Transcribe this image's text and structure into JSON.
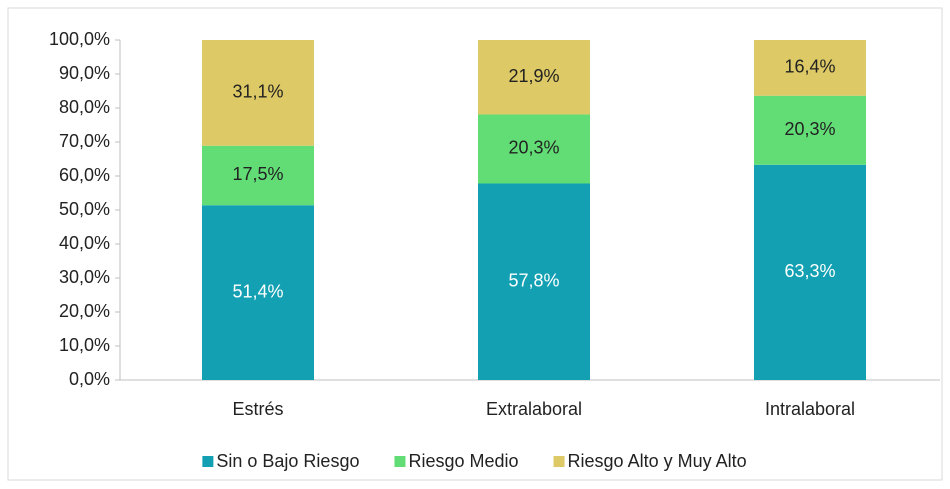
{
  "chart_data": {
    "type": "stacked_bar",
    "categories": [
      "Estrés",
      "Extralaboral",
      "Intralaboral"
    ],
    "series": [
      {
        "name": "Sin o Bajo Riesgo",
        "color": "#13a0b3",
        "values": [
          51.4,
          57.8,
          63.3
        ],
        "value_labels": [
          "51,4%",
          "57,8%",
          "63,3%"
        ]
      },
      {
        "name": "Riesgo Medio",
        "color": "#62dd76",
        "values": [
          17.5,
          20.3,
          20.3
        ],
        "value_labels": [
          "17,5%",
          "20,3%",
          "20,3%"
        ]
      },
      {
        "name": "Riesgo Alto y Muy Alto",
        "color": "#ddc965",
        "values": [
          31.1,
          21.9,
          16.4
        ],
        "value_labels": [
          "31,1%",
          "21,9%",
          "16,4%"
        ]
      }
    ],
    "ylim": [
      0,
      100
    ],
    "yticks": [
      {
        "value": 0,
        "label": "0,0%"
      },
      {
        "value": 10,
        "label": "10,0%"
      },
      {
        "value": 20,
        "label": "20,0%"
      },
      {
        "value": 30,
        "label": "30,0%"
      },
      {
        "value": 40,
        "label": "40,0%"
      },
      {
        "value": 50,
        "label": "50,0%"
      },
      {
        "value": 60,
        "label": "60,0%"
      },
      {
        "value": 70,
        "label": "70,0%"
      },
      {
        "value": 80,
        "label": "80,0%"
      },
      {
        "value": 90,
        "label": "90,0%"
      },
      {
        "value": 100,
        "label": "100,0%"
      }
    ],
    "grid": false,
    "legend": "bottom"
  }
}
